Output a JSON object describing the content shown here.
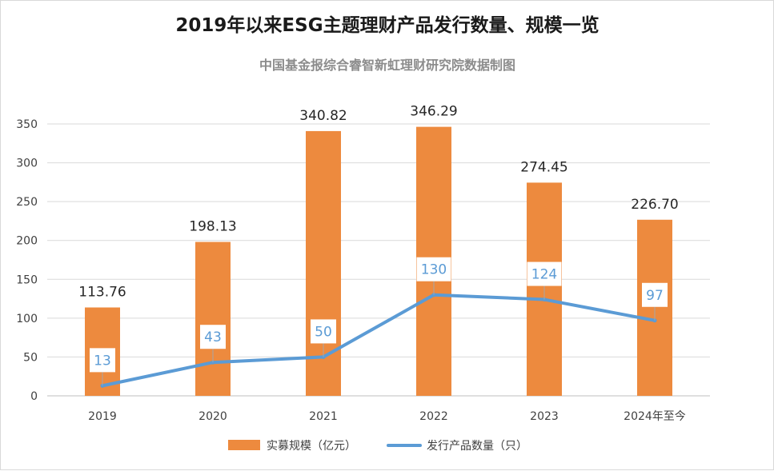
{
  "chart_data": {
    "type": "bar",
    "title": "2019年以来ESG主题理财产品发行数量、规模一览",
    "subtitle": "中国基金报综合睿智新虹理财研究院数据制图",
    "categories": [
      "2019",
      "2020",
      "2021",
      "2022",
      "2023",
      "2024年至今"
    ],
    "ylim": [
      0,
      350
    ],
    "yticks": [
      0,
      50,
      100,
      150,
      200,
      250,
      300,
      350
    ],
    "grid": true,
    "legend_position": "bottom",
    "series": [
      {
        "name": "实募规模（亿元）",
        "type": "bar",
        "color": "#ED8A3E",
        "values": [
          113.76,
          198.13,
          340.82,
          346.29,
          274.45,
          226.7
        ],
        "labels": [
          "113.76",
          "198.13",
          "340.82",
          "346.29",
          "274.45",
          "226.70"
        ]
      },
      {
        "name": "发行产品数量（只）",
        "type": "line",
        "color": "#5B9BD5",
        "values": [
          13,
          43,
          50,
          130,
          124,
          97
        ],
        "labels": [
          "13",
          "43",
          "50",
          "130",
          "124",
          "97"
        ]
      }
    ]
  }
}
